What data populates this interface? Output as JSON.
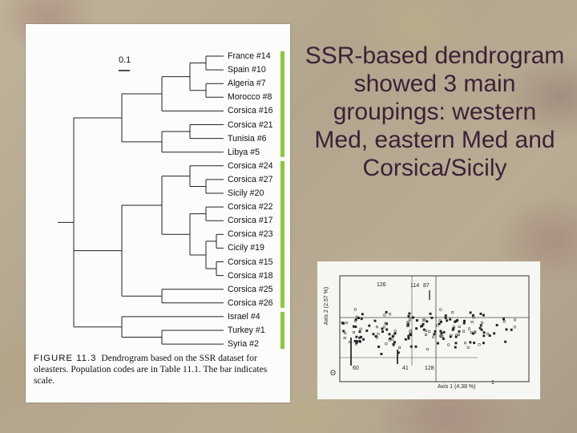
{
  "slide": {
    "title": "SSR-based dendrogram showed 3 main groupings: western Med, eastern Med and Corsica/Sicily"
  },
  "dendrogram": {
    "scale_label": "0.1",
    "leaves": [
      "France #14",
      "Spain #10",
      "Algeria #7",
      "Morocco #8",
      "Corsica #16",
      "Corsica #21",
      "Tunisia #6",
      "Libya #5",
      "Corsica #24",
      "Corsica #27",
      "Sicily #20",
      "Corsica  #22",
      "Corsica  #17",
      "Corsica  #23",
      "Cicily #19",
      "Corsica  #15",
      "Corsica  #18",
      "Corsica  #25",
      "Corsica  #26",
      "Israel #4",
      "Turkey #1",
      "Syria #2"
    ],
    "groups": [
      {
        "from": 0,
        "to": 7
      },
      {
        "from": 8,
        "to": 18
      },
      {
        "from": 19,
        "to": 21
      }
    ],
    "group_color": "#8dc63f",
    "caption_fig": "FIGURE 11.3",
    "caption_text": "Dendrogram based on the SSR dataset for oleasters. Population codes are in Table 11.1. The bar indicates scale."
  },
  "pca_plot": {
    "x_axis_label": "Axis 1 (4.38 %)",
    "y_axis_label": "Axis 2 (2.57 %)",
    "point_labels": [
      "126",
      "114",
      "87",
      "60",
      "41",
      "128",
      "1"
    ],
    "corner_mark": "Θ"
  }
}
